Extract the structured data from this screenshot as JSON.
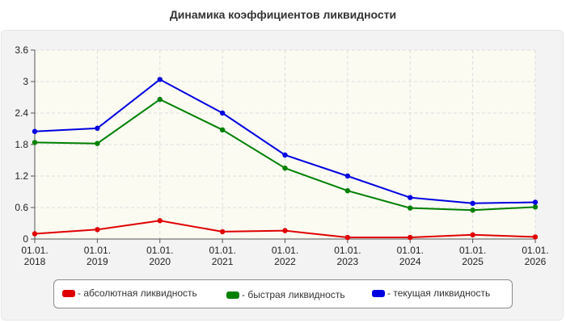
{
  "chart_data": {
    "type": "line",
    "title": "Динамика коэффициентов ликвидности",
    "xlabel": "",
    "ylabel": "",
    "categories": [
      [
        "01.01.",
        "2018"
      ],
      [
        "01.01.",
        "2019"
      ],
      [
        "01.01.",
        "2020"
      ],
      [
        "01.01.",
        "2021"
      ],
      [
        "01.01.",
        "2022"
      ],
      [
        "01.01.",
        "2023"
      ],
      [
        "01.01.",
        "2024"
      ],
      [
        "01.01.",
        "2025"
      ],
      [
        "01.01.",
        "2026"
      ]
    ],
    "ylim": [
      0,
      3.6
    ],
    "yticks": [
      "0",
      "0.6",
      "1.2",
      "1.8",
      "2.4",
      "3",
      "3.6"
    ],
    "grid": true,
    "legend_position": "bottom",
    "series": [
      {
        "name": "- абсолютная ликвидность",
        "color": "#e00000",
        "values": [
          0.1,
          0.18,
          0.35,
          0.14,
          0.16,
          0.03,
          0.03,
          0.08,
          0.04
        ]
      },
      {
        "name": "- быстрая ликвидность",
        "color": "#008000",
        "values": [
          1.84,
          1.82,
          2.66,
          2.08,
          1.35,
          0.92,
          0.59,
          0.55,
          0.61
        ]
      },
      {
        "name": "- текущая ликвидность",
        "color": "#0000e0",
        "values": [
          2.05,
          2.11,
          3.04,
          2.4,
          1.6,
          1.2,
          0.79,
          0.68,
          0.7
        ]
      }
    ]
  }
}
